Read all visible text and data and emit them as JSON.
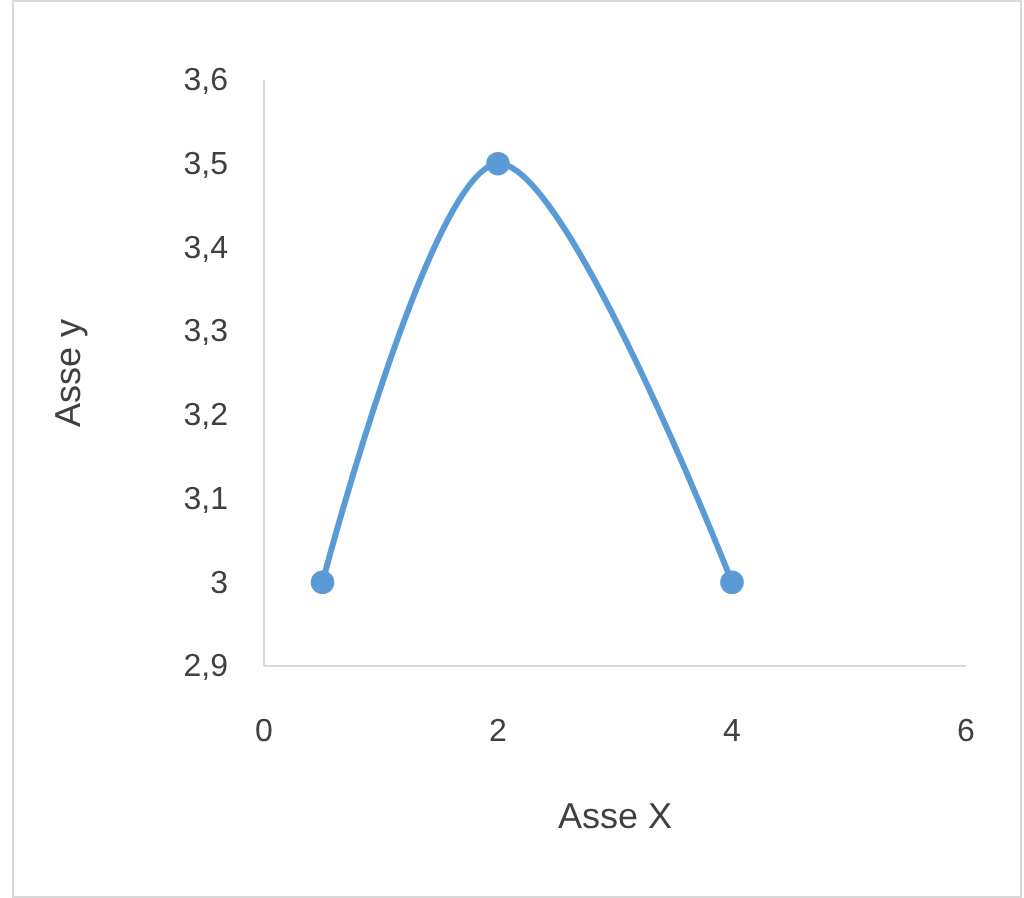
{
  "chart_data": {
    "type": "line",
    "xlabel": "Asse X",
    "ylabel": "Asse y",
    "series": [
      {
        "color": "#5b9bd5",
        "x": [
          0.5,
          2,
          4
        ],
        "values": [
          3,
          3.5,
          3
        ]
      }
    ],
    "xlim": [
      0,
      6
    ],
    "xticks": [
      0,
      2,
      4,
      6
    ],
    "ylim": [
      2.9,
      3.6
    ],
    "yticks": [
      {
        "value": 2.9,
        "label": "2,9"
      },
      {
        "value": 3,
        "label": "3"
      },
      {
        "value": 3.1,
        "label": "3,1"
      },
      {
        "value": 3.2,
        "label": "3,2"
      },
      {
        "value": 3.3,
        "label": "3,3"
      },
      {
        "value": 3.4,
        "label": "3,4"
      },
      {
        "value": 3.5,
        "label": "3,5"
      },
      {
        "value": 3.6,
        "label": "3,6"
      }
    ],
    "marker": "circle",
    "line_style": "solid"
  }
}
